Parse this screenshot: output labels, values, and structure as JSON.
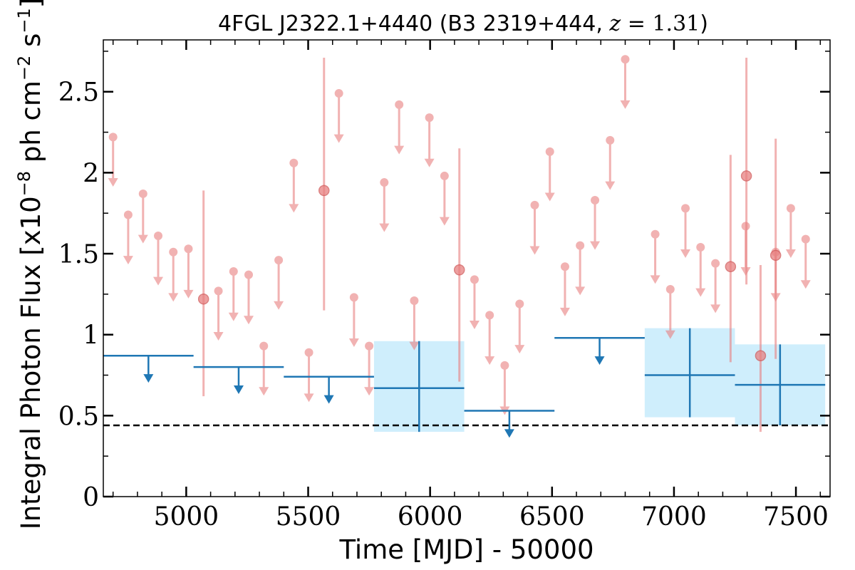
{
  "chart_data": {
    "type": "scatter",
    "title": {
      "prefix": "4FGL J2322.1+4440 (B3 2319+444, ",
      "math_var": "z",
      "math_eq": " = ",
      "math_val": "1.31",
      "suffix": ")"
    },
    "xlabel": "Time [MJD] - 50000",
    "ylabel": {
      "prefix": "Integral Photon Flux [x10",
      "exp1": "−8",
      "middle": " ph cm",
      "exp2": "−2",
      "middle2": " s",
      "exp3": "−1",
      "suffix": "]"
    },
    "xlim": [
      4660,
      7640
    ],
    "ylim": [
      0,
      2.82
    ],
    "xticks": [
      5000,
      5500,
      6000,
      6500,
      7000,
      7500
    ],
    "xtick_labels": [
      "5000",
      "5500",
      "6000",
      "6500",
      "7000",
      "7500"
    ],
    "yticks": [
      0,
      0.5,
      1,
      1.5,
      2,
      2.5
    ],
    "ytick_labels": [
      "0",
      "0.5",
      "1",
      "1.5",
      "2",
      "2.5"
    ],
    "grid": false,
    "colors": {
      "short_bins": "#e88080",
      "long_bins": "#1f77b4",
      "long_bins_band": "#cfeefc",
      "reference_line": "#000000"
    },
    "reference_line": {
      "y": 0.44,
      "style": "dashed"
    },
    "short_bins": {
      "upper_limits": [
        {
          "x": 4700,
          "y": 2.22
        },
        {
          "x": 4762,
          "y": 1.74
        },
        {
          "x": 4823,
          "y": 1.87
        },
        {
          "x": 4885,
          "y": 1.61
        },
        {
          "x": 4947,
          "y": 1.51
        },
        {
          "x": 5009,
          "y": 1.53
        },
        {
          "x": 5132,
          "y": 1.27
        },
        {
          "x": 5194,
          "y": 1.39
        },
        {
          "x": 5256,
          "y": 1.37
        },
        {
          "x": 5318,
          "y": 0.93
        },
        {
          "x": 5379,
          "y": 1.46
        },
        {
          "x": 5441,
          "y": 2.06
        },
        {
          "x": 5503,
          "y": 0.89
        },
        {
          "x": 5626,
          "y": 2.49
        },
        {
          "x": 5688,
          "y": 1.23
        },
        {
          "x": 5750,
          "y": 0.93
        },
        {
          "x": 5812,
          "y": 1.94
        },
        {
          "x": 5873,
          "y": 2.42
        },
        {
          "x": 5935,
          "y": 1.21
        },
        {
          "x": 5997,
          "y": 2.34
        },
        {
          "x": 6059,
          "y": 1.98
        },
        {
          "x": 6182,
          "y": 1.34
        },
        {
          "x": 6244,
          "y": 1.12
        },
        {
          "x": 6306,
          "y": 0.81
        },
        {
          "x": 6367,
          "y": 1.19
        },
        {
          "x": 6429,
          "y": 1.8
        },
        {
          "x": 6491,
          "y": 2.13
        },
        {
          "x": 6553,
          "y": 1.42
        },
        {
          "x": 6615,
          "y": 1.55
        },
        {
          "x": 6676,
          "y": 1.83
        },
        {
          "x": 6738,
          "y": 2.2
        },
        {
          "x": 6800,
          "y": 2.7
        },
        {
          "x": 6923,
          "y": 1.62
        },
        {
          "x": 6985,
          "y": 1.28
        },
        {
          "x": 7047,
          "y": 1.78
        },
        {
          "x": 7109,
          "y": 1.54
        },
        {
          "x": 7170,
          "y": 1.44
        },
        {
          "x": 7294,
          "y": 1.67
        },
        {
          "x": 7417,
          "y": 1.51
        },
        {
          "x": 7479,
          "y": 1.78
        },
        {
          "x": 7540,
          "y": 1.59
        }
      ],
      "detections": [
        {
          "x": 5071,
          "y": 1.22,
          "ylo": 0.62,
          "yhi": 1.89
        },
        {
          "x": 5565,
          "y": 1.89,
          "ylo": 1.15,
          "yhi": 2.71
        },
        {
          "x": 6120,
          "y": 1.4,
          "ylo": 0.71,
          "yhi": 2.15
        },
        {
          "x": 7232,
          "y": 1.42,
          "ylo": 0.83,
          "yhi": 2.11
        },
        {
          "x": 7297,
          "y": 1.98,
          "ylo": 1.31,
          "yhi": 2.71
        },
        {
          "x": 7355,
          "y": 0.87,
          "ylo": 0.4,
          "yhi": 1.43
        },
        {
          "x": 7417,
          "y": 1.49,
          "ylo": 0.85,
          "yhi": 2.21
        }
      ]
    },
    "long_bins": {
      "upper_limits": [
        {
          "x0": 4660,
          "x1": 5030,
          "y": 0.87
        },
        {
          "x0": 5030,
          "x1": 5400,
          "y": 0.8
        },
        {
          "x0": 5400,
          "x1": 5770,
          "y": 0.74
        },
        {
          "x0": 6140,
          "x1": 6510,
          "y": 0.53
        },
        {
          "x0": 6510,
          "x1": 6880,
          "y": 0.98
        }
      ],
      "detections": [
        {
          "x0": 5770,
          "x1": 6140,
          "x": 5955,
          "y": 0.67,
          "ylo": 0.4,
          "yhi": 0.96
        },
        {
          "x0": 6880,
          "x1": 7250,
          "x": 7065,
          "y": 0.75,
          "ylo": 0.49,
          "yhi": 1.04
        },
        {
          "x0": 7250,
          "x1": 7620,
          "x": 7435,
          "y": 0.69,
          "ylo": 0.44,
          "yhi": 0.94
        }
      ]
    }
  }
}
